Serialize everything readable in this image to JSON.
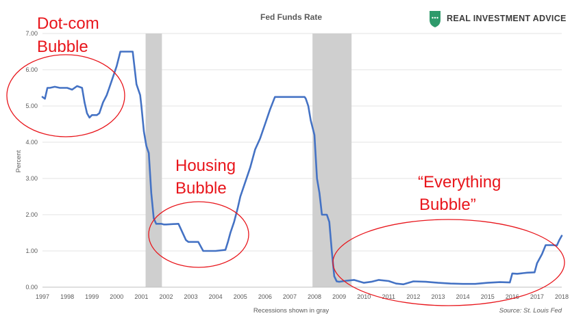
{
  "brand": {
    "name": "REAL INVESTMENT ADVICE",
    "logo_color": "#2e9a6b"
  },
  "colors": {
    "line": "#4472c4",
    "recession": "#cfcfcf",
    "annotation": "#e8151b",
    "grid": "#e3e3e3"
  },
  "chart_data": {
    "type": "line",
    "title": "Fed Funds Rate",
    "xlabel": "Recessions shown in gray",
    "ylabel": "Percent",
    "source": "Source: St. Louis Fed",
    "xlim": [
      1997,
      2018
    ],
    "ylim": [
      0,
      7
    ],
    "yticks": [
      "0.00",
      "1.00",
      "2.00",
      "3.00",
      "4.00",
      "5.00",
      "6.00",
      "7.00"
    ],
    "xticks": [
      "1997",
      "1998",
      "1999",
      "2000",
      "2001",
      "2002",
      "2003",
      "2004",
      "2005",
      "2006",
      "2007",
      "2008",
      "2009",
      "2010",
      "2011",
      "2012",
      "2013",
      "2014",
      "2015",
      "2016",
      "2017",
      "2018"
    ],
    "grid": true,
    "recessions": [
      [
        2001.17,
        2001.83
      ],
      [
        2007.92,
        2009.5
      ]
    ],
    "series": [
      {
        "name": "",
        "x": [
          1997.0,
          1997.1,
          1997.2,
          1997.3,
          1997.5,
          1997.7,
          1998.0,
          1998.2,
          1998.4,
          1998.6,
          1998.7,
          1998.8,
          1998.9,
          1999.0,
          1999.1,
          1999.2,
          1999.3,
          1999.45,
          1999.6,
          1999.7,
          1999.8,
          1999.9,
          2000.0,
          2000.15,
          2000.3,
          2000.4,
          2000.5,
          2000.65,
          2000.8,
          2000.95,
          2001.0,
          2001.1,
          2001.2,
          2001.3,
          2001.4,
          2001.5,
          2001.6,
          2001.7,
          2001.8,
          2001.9,
          2002.0,
          2002.5,
          2002.8,
          2002.9,
          2003.0,
          2003.3,
          2003.5,
          2003.55,
          2004.0,
          2004.4,
          2004.5,
          2004.6,
          2004.75,
          2004.9,
          2005.0,
          2005.2,
          2005.4,
          2005.6,
          2005.8,
          2006.0,
          2006.2,
          2006.4,
          2006.5,
          2006.7,
          2007.0,
          2007.3,
          2007.6,
          2007.65,
          2007.75,
          2007.85,
          2008.0,
          2008.1,
          2008.2,
          2008.3,
          2008.4,
          2008.5,
          2008.6,
          2008.7,
          2008.8,
          2008.9,
          2009.0,
          2009.3,
          2009.6,
          2010.0,
          2010.3,
          2010.6,
          2011.0,
          2011.3,
          2011.6,
          2012.0,
          2012.5,
          2013.0,
          2013.5,
          2014.0,
          2014.5,
          2015.0,
          2015.5,
          2015.9,
          2016.0,
          2016.2,
          2016.6,
          2016.9,
          2017.0,
          2017.2,
          2017.35,
          2017.5,
          2017.65,
          2017.8,
          2017.9,
          2018.0
        ],
        "y": [
          5.25,
          5.2,
          5.5,
          5.5,
          5.53,
          5.5,
          5.5,
          5.45,
          5.55,
          5.5,
          5.1,
          4.8,
          4.68,
          4.75,
          4.75,
          4.75,
          4.8,
          5.1,
          5.3,
          5.5,
          5.7,
          5.9,
          6.1,
          6.5,
          6.5,
          6.5,
          6.5,
          6.5,
          5.6,
          5.3,
          5.0,
          4.3,
          3.9,
          3.7,
          2.6,
          1.9,
          1.75,
          1.75,
          1.75,
          1.73,
          1.73,
          1.75,
          1.3,
          1.25,
          1.25,
          1.25,
          1.0,
          1.0,
          1.0,
          1.03,
          1.25,
          1.5,
          1.8,
          2.2,
          2.5,
          2.9,
          3.3,
          3.8,
          4.1,
          4.5,
          4.9,
          5.25,
          5.25,
          5.25,
          5.25,
          5.25,
          5.25,
          5.2,
          5.0,
          4.6,
          4.2,
          3.0,
          2.6,
          2.0,
          2.0,
          2.0,
          1.8,
          1.0,
          0.3,
          0.16,
          0.15,
          0.18,
          0.2,
          0.12,
          0.15,
          0.2,
          0.17,
          0.1,
          0.08,
          0.16,
          0.15,
          0.12,
          0.1,
          0.09,
          0.09,
          0.12,
          0.14,
          0.13,
          0.38,
          0.37,
          0.4,
          0.41,
          0.66,
          0.91,
          1.16,
          1.16,
          1.16,
          1.15,
          1.3,
          1.42
        ]
      }
    ],
    "annotations": [
      {
        "lines": [
          "Dot-com",
          "Bubble"
        ]
      },
      {
        "lines": [
          "Housing",
          "Bubble"
        ]
      },
      {
        "lines": [
          "“Everything",
          "Bubble”"
        ]
      }
    ]
  }
}
